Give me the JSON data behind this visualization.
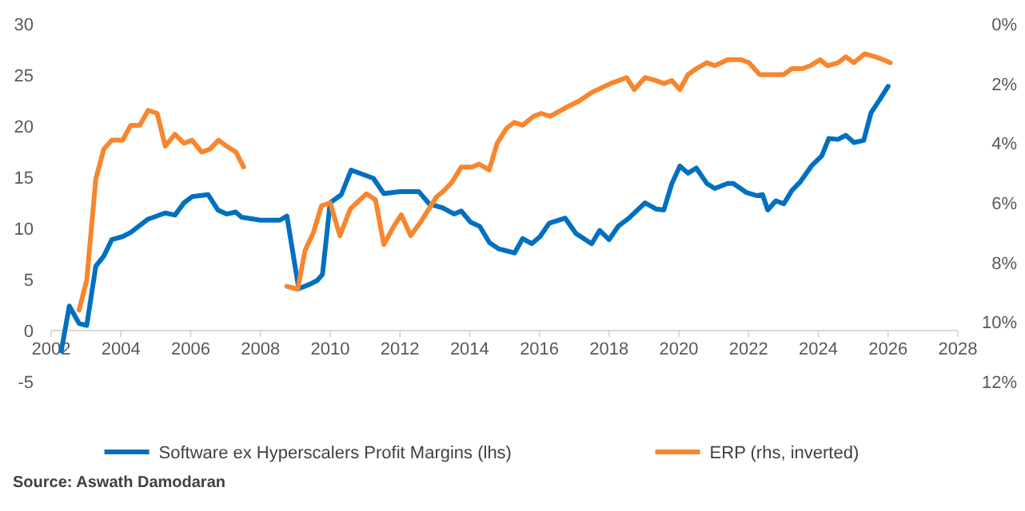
{
  "chart_data": {
    "type": "line",
    "xlim": [
      2002,
      2028
    ],
    "xticks": [
      2002,
      2004,
      2006,
      2008,
      2010,
      2012,
      2014,
      2016,
      2018,
      2020,
      2022,
      2024,
      2026,
      2028
    ],
    "ylim": [
      -5,
      30
    ],
    "yticks": [
      -5,
      0,
      5,
      10,
      15,
      20,
      25,
      30
    ],
    "y2lim": [
      12,
      0
    ],
    "y2ticks": [
      {
        "value": 0,
        "label": "0%"
      },
      {
        "value": 2,
        "label": "2%"
      },
      {
        "value": 4,
        "label": "4%"
      },
      {
        "value": 6,
        "label": "6%"
      },
      {
        "value": 8,
        "label": "8%"
      },
      {
        "value": 10,
        "label": "10%"
      },
      {
        "value": 12,
        "label": "12%"
      }
    ],
    "grid": false,
    "legend": "bottom",
    "line_style": "solid",
    "marker": "none",
    "series": [
      {
        "name": "Software ex Hyperscalers Profit Margins (lhs)",
        "color": "#0070c0",
        "x": [
          2002.29,
          2002.52,
          2002.8,
          2003.02,
          2003.28,
          2003.51,
          2003.74,
          2004.05,
          2004.28,
          2004.78,
          2005.27,
          2005.55,
          2005.81,
          2006.04,
          2006.5,
          2006.78,
          2007.03,
          2007.29,
          2007.46,
          2008.0,
          2008.56,
          2008.76,
          2009.1,
          2009.4,
          2009.63,
          2009.78,
          2010.0,
          2010.32,
          2010.6,
          2011.24,
          2011.54,
          2012.0,
          2012.54,
          2012.84,
          2013.23,
          2013.56,
          2013.76,
          2014.03,
          2014.29,
          2014.57,
          2014.83,
          2015.29,
          2015.52,
          2015.78,
          2016.02,
          2016.28,
          2016.74,
          2017.05,
          2017.5,
          2017.73,
          2018.0,
          2018.26,
          2018.57,
          2019.03,
          2019.34,
          2019.57,
          2019.8,
          2020.03,
          2020.26,
          2020.5,
          2020.8,
          2021.03,
          2021.4,
          2021.56,
          2021.94,
          2022.24,
          2022.4,
          2022.55,
          2022.78,
          2023.01,
          2023.24,
          2023.47,
          2023.8,
          2024.1,
          2024.3,
          2024.56,
          2024.79,
          2025.02,
          2025.3,
          2025.51,
          2025.78,
          2026.0
        ],
        "values": [
          -2.0,
          2.4,
          0.7,
          0.5,
          6.3,
          7.3,
          8.9,
          9.2,
          9.6,
          10.9,
          11.5,
          11.3,
          12.5,
          13.1,
          13.3,
          11.8,
          11.4,
          11.6,
          11.1,
          10.8,
          10.8,
          11.2,
          4.1,
          4.5,
          4.9,
          5.5,
          12.5,
          13.3,
          15.7,
          14.9,
          13.4,
          13.6,
          13.6,
          12.4,
          12.0,
          11.4,
          11.7,
          10.6,
          10.2,
          8.6,
          8.0,
          7.6,
          9.0,
          8.5,
          9.2,
          10.5,
          11.0,
          9.5,
          8.5,
          9.8,
          8.9,
          10.2,
          11.0,
          12.5,
          11.9,
          11.8,
          14.4,
          16.1,
          15.4,
          15.9,
          14.4,
          13.9,
          14.4,
          14.4,
          13.5,
          13.2,
          13.3,
          11.8,
          12.7,
          12.4,
          13.7,
          14.5,
          16.1,
          17.1,
          18.8,
          18.7,
          19.1,
          18.4,
          18.6,
          21.3,
          22.7,
          23.9
        ]
      },
      {
        "name": "ERP (rhs, inverted)",
        "color": "#f7862e",
        "axis": "y2",
        "x": [
          2002.8,
          2003.02,
          2003.28,
          2003.51,
          2003.74,
          2004.05,
          2004.28,
          2004.54,
          2004.78,
          2005.04,
          2005.27,
          2005.55,
          2005.81,
          2006.04,
          2006.32,
          2006.55,
          2006.8,
          2007.03,
          2007.3,
          2007.52,
          2008.2,
          2008.76,
          2009.07,
          2009.28,
          2009.52,
          2009.75,
          2010.0,
          2010.28,
          2010.58,
          2011.04,
          2011.3,
          2011.54,
          2011.82,
          2012.04,
          2012.31,
          2012.62,
          2013.05,
          2013.26,
          2013.5,
          2013.76,
          2014.07,
          2014.27,
          2014.56,
          2014.79,
          2015.06,
          2015.29,
          2015.52,
          2015.83,
          2016.05,
          2016.31,
          2016.77,
          2017.12,
          2017.5,
          2018.04,
          2018.5,
          2018.72,
          2019.03,
          2019.34,
          2019.57,
          2019.8,
          2020.03,
          2020.26,
          2020.5,
          2020.8,
          2021.03,
          2021.4,
          2021.78,
          2022.01,
          2022.32,
          2022.55,
          2022.78,
          2023.0,
          2023.24,
          2023.54,
          2023.77,
          2024.05,
          2024.26,
          2024.56,
          2024.79,
          2025.02,
          2025.33,
          2025.63,
          2025.86,
          2026.06
        ],
        "values": [
          9.6,
          8.6,
          5.2,
          4.2,
          3.9,
          3.9,
          3.4,
          3.4,
          2.9,
          3.0,
          4.1,
          3.7,
          4.0,
          3.9,
          4.3,
          4.2,
          3.9,
          4.1,
          4.3,
          4.8,
          null,
          8.8,
          8.9,
          7.6,
          7.0,
          6.1,
          6.0,
          7.1,
          6.2,
          5.7,
          5.9,
          7.4,
          6.8,
          6.4,
          7.1,
          6.6,
          5.8,
          5.6,
          5.3,
          4.8,
          4.8,
          4.7,
          4.9,
          4.0,
          3.5,
          3.3,
          3.4,
          3.1,
          3.0,
          3.1,
          2.8,
          2.6,
          2.3,
          2.0,
          1.8,
          2.2,
          1.8,
          1.9,
          2.0,
          1.9,
          2.2,
          1.7,
          1.5,
          1.3,
          1.4,
          1.2,
          1.2,
          1.3,
          1.7,
          1.7,
          1.7,
          1.7,
          1.5,
          1.5,
          1.4,
          1.2,
          1.4,
          1.3,
          1.1,
          1.3,
          1.0,
          1.1,
          1.2,
          1.3
        ]
      }
    ],
    "annotations": [
      "Source: Aswath Damodaran"
    ]
  }
}
